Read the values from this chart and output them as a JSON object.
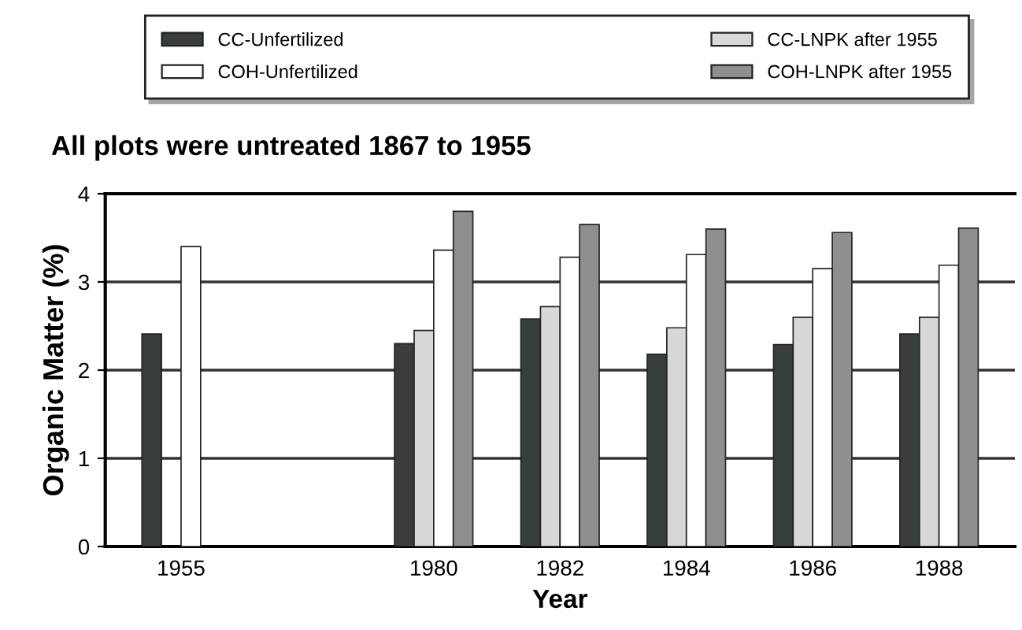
{
  "chart_data": {
    "type": "bar",
    "title": "All plots were untreated 1867 to 1955",
    "xlabel": "Year",
    "ylabel": "Organic Matter (%)",
    "categories": [
      "1955",
      null,
      "1980",
      "1982",
      "1984",
      "1986",
      "1988"
    ],
    "series": [
      {
        "name": "CC-Unfertilized",
        "color": "#3a3d3d",
        "values": [
          2.41,
          null,
          2.3,
          2.58,
          2.18,
          2.29,
          2.41
        ]
      },
      {
        "name": "CC-LNPK after 1955",
        "color": "#d8d8d8",
        "values": [
          null,
          null,
          2.45,
          2.72,
          2.48,
          2.6,
          2.6
        ]
      },
      {
        "name": "COH-Unfertilized",
        "color": "#ffffff",
        "values": [
          3.4,
          null,
          3.36,
          3.28,
          3.31,
          3.15,
          3.19
        ]
      },
      {
        "name": "COH-LNPK after 1955",
        "color": "#8f8f8f",
        "values": [
          null,
          null,
          3.8,
          3.65,
          3.6,
          3.56,
          3.61
        ]
      }
    ],
    "ylim": [
      0,
      4
    ],
    "yticks": [
      0,
      1,
      2,
      3,
      4
    ],
    "grid": "y",
    "legend": "top"
  }
}
